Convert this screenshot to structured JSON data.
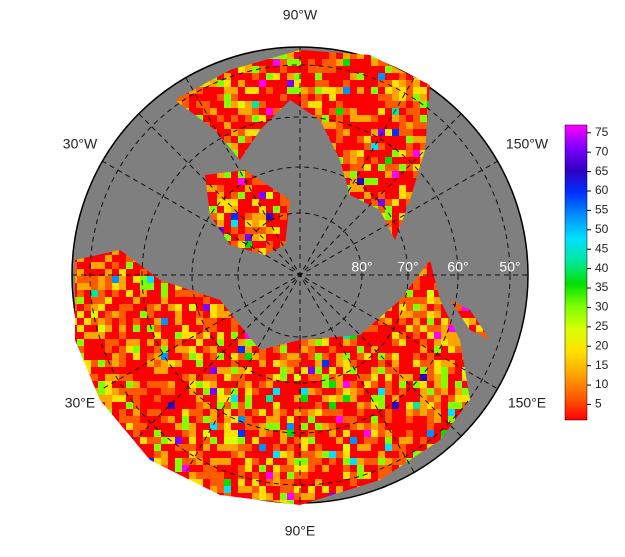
{
  "map": {
    "meridian_labels": [
      "90°W",
      "30°W",
      "150°W",
      "30°E",
      "150°E",
      "90°E"
    ],
    "latitude_labels": [
      "80°",
      "70°",
      "60°",
      "50°"
    ],
    "colorbar": {
      "lim": [
        1,
        77
      ],
      "ticks": [
        5,
        10,
        15,
        20,
        25,
        30,
        35,
        40,
        45,
        50,
        55,
        60,
        65,
        70,
        75
      ],
      "colors": [
        "#ff0000",
        "#ff5a00",
        "#ffa500",
        "#ffe000",
        "#d8ff00",
        "#7fff00",
        "#00e000",
        "#00e8a0",
        "#00e0ff",
        "#0090ff",
        "#0030ff",
        "#3000c0",
        "#8000ff",
        "#ff00ff"
      ]
    }
  }
}
